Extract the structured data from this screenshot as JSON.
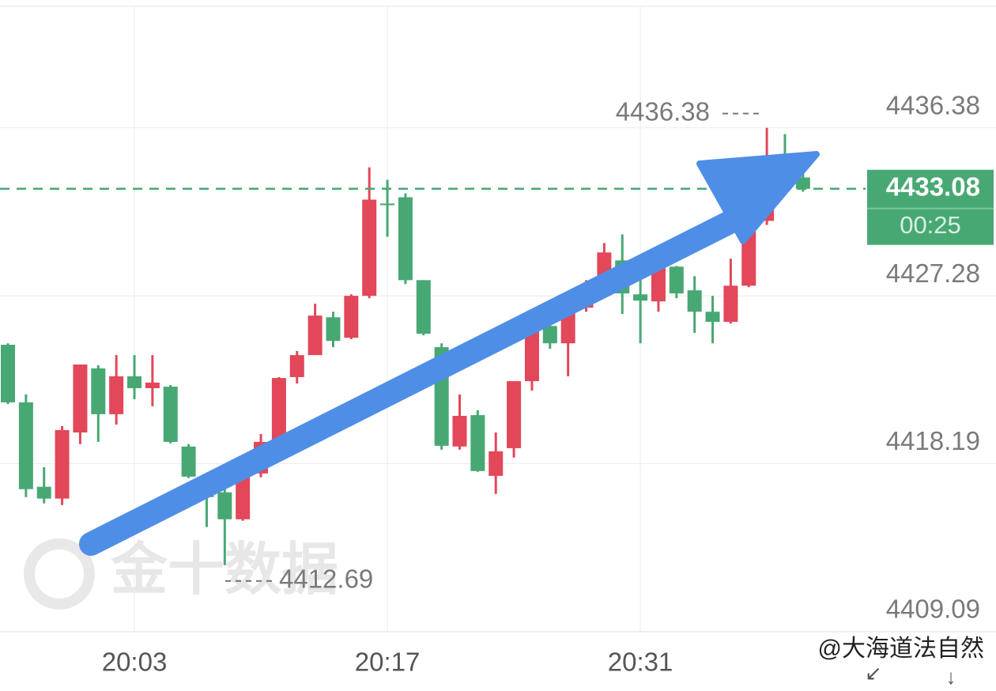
{
  "chart_data": {
    "type": "candlestick",
    "categories": [
      null,
      null,
      null,
      null,
      null,
      null,
      null,
      "20:03",
      null,
      null,
      null,
      null,
      null,
      null,
      null,
      null,
      null,
      null,
      null,
      null,
      null,
      "20:17",
      null,
      null,
      null,
      null,
      null,
      null,
      null,
      null,
      null,
      null,
      null,
      null,
      null,
      "20:31",
      null,
      null,
      null,
      null,
      null,
      null,
      null,
      null,
      null
    ],
    "open": [
      4424.63,
      4421.51,
      4416.94,
      4416.3,
      4419.88,
      4423.35,
      4420.87,
      4422.92,
      4422.28,
      4422.36,
      4419.12,
      4417.24,
      4416.64,
      4415.18,
      4417.66,
      4418.95,
      4422.88,
      4424.07,
      4426.12,
      4425.01,
      4427.28,
      4432.28,
      4432.62,
      4428.13,
      4424.5,
      4419.12,
      4420.82,
      4417.53,
      4419.03,
      4422.66,
      4425.65,
      4424.71,
      4426.64,
      4427.92,
      4429.2,
      4427.36,
      4426.98,
      4428.86,
      4427.58,
      4426.42,
      4425.87,
      4427.83,
      4431.34,
      4434.76,
      4433.69
    ],
    "high": [
      4424.71,
      4421.94,
      4418.0,
      4420.23,
      4423.56,
      4423.52,
      4424.07,
      4424.07,
      4424.07,
      4422.45,
      4419.25,
      4417.45,
      4416.81,
      4417.75,
      4419.8,
      4422.88,
      4424.29,
      4426.85,
      4426.42,
      4427.36,
      4434.24,
      4433.56,
      4432.83,
      4428.13,
      4424.71,
      4421.94,
      4421.08,
      4419.88,
      4422.66,
      4426.21,
      4426.42,
      4426.64,
      4428.13,
      4430.14,
      4430.61,
      4429.2,
      4428.9,
      4428.9,
      4428.35,
      4427.28,
      4429.29,
      4431.76,
      4436.38,
      4436.04,
      4433.99
    ],
    "low": [
      4421.42,
      4416.38,
      4416.04,
      4415.95,
      4419.25,
      4419.37,
      4420.31,
      4421.68,
      4421.3,
      4419.29,
      4417.41,
      4414.76,
      4412.69,
      4415.1,
      4417.45,
      4418.73,
      4422.53,
      4424.07,
      4424.5,
      4424.93,
      4427.15,
      4430.48,
      4427.92,
      4425.14,
      4418.95,
      4418.95,
      4417.75,
      4416.55,
      4418.52,
      4422.15,
      4424.41,
      4422.92,
      4426.42,
      4427.83,
      4426.29,
      4424.71,
      4426.42,
      4427.15,
      4425.27,
      4424.71,
      4425.78,
      4427.75,
      4431.12,
      4433.47,
      4432.92
    ],
    "close": [
      4421.51,
      4416.81,
      4416.3,
      4420.01,
      4423.56,
      4420.87,
      4422.92,
      4422.28,
      4422.58,
      4419.37,
      4417.49,
      4416.38,
      4415.18,
      4417.66,
      4419.37,
      4422.83,
      4424.07,
      4426.21,
      4424.84,
      4427.28,
      4432.49,
      4432.19,
      4428.13,
      4425.23,
      4419.16,
      4420.78,
      4417.79,
      4418.86,
      4422.66,
      4425.99,
      4424.71,
      4426.55,
      4427.7,
      4429.63,
      4427.41,
      4427.02,
      4428.86,
      4427.41,
      4426.42,
      4425.87,
      4427.83,
      4431.34,
      4434.76,
      4433.69,
      4433.08
    ],
    "up_color": "#e2475a",
    "down_color": "#48a873",
    "ylim": [
      4409.09,
      4442.96
    ],
    "yticks": [
      4409.09,
      4418.19,
      4427.28,
      4436.38
    ],
    "grid": true,
    "last_price": 4433.08,
    "countdown": "00:25",
    "max_label": 4436.38,
    "min_label": 4412.69,
    "watermark": "金十数据",
    "credit": "@大海道法自然"
  }
}
